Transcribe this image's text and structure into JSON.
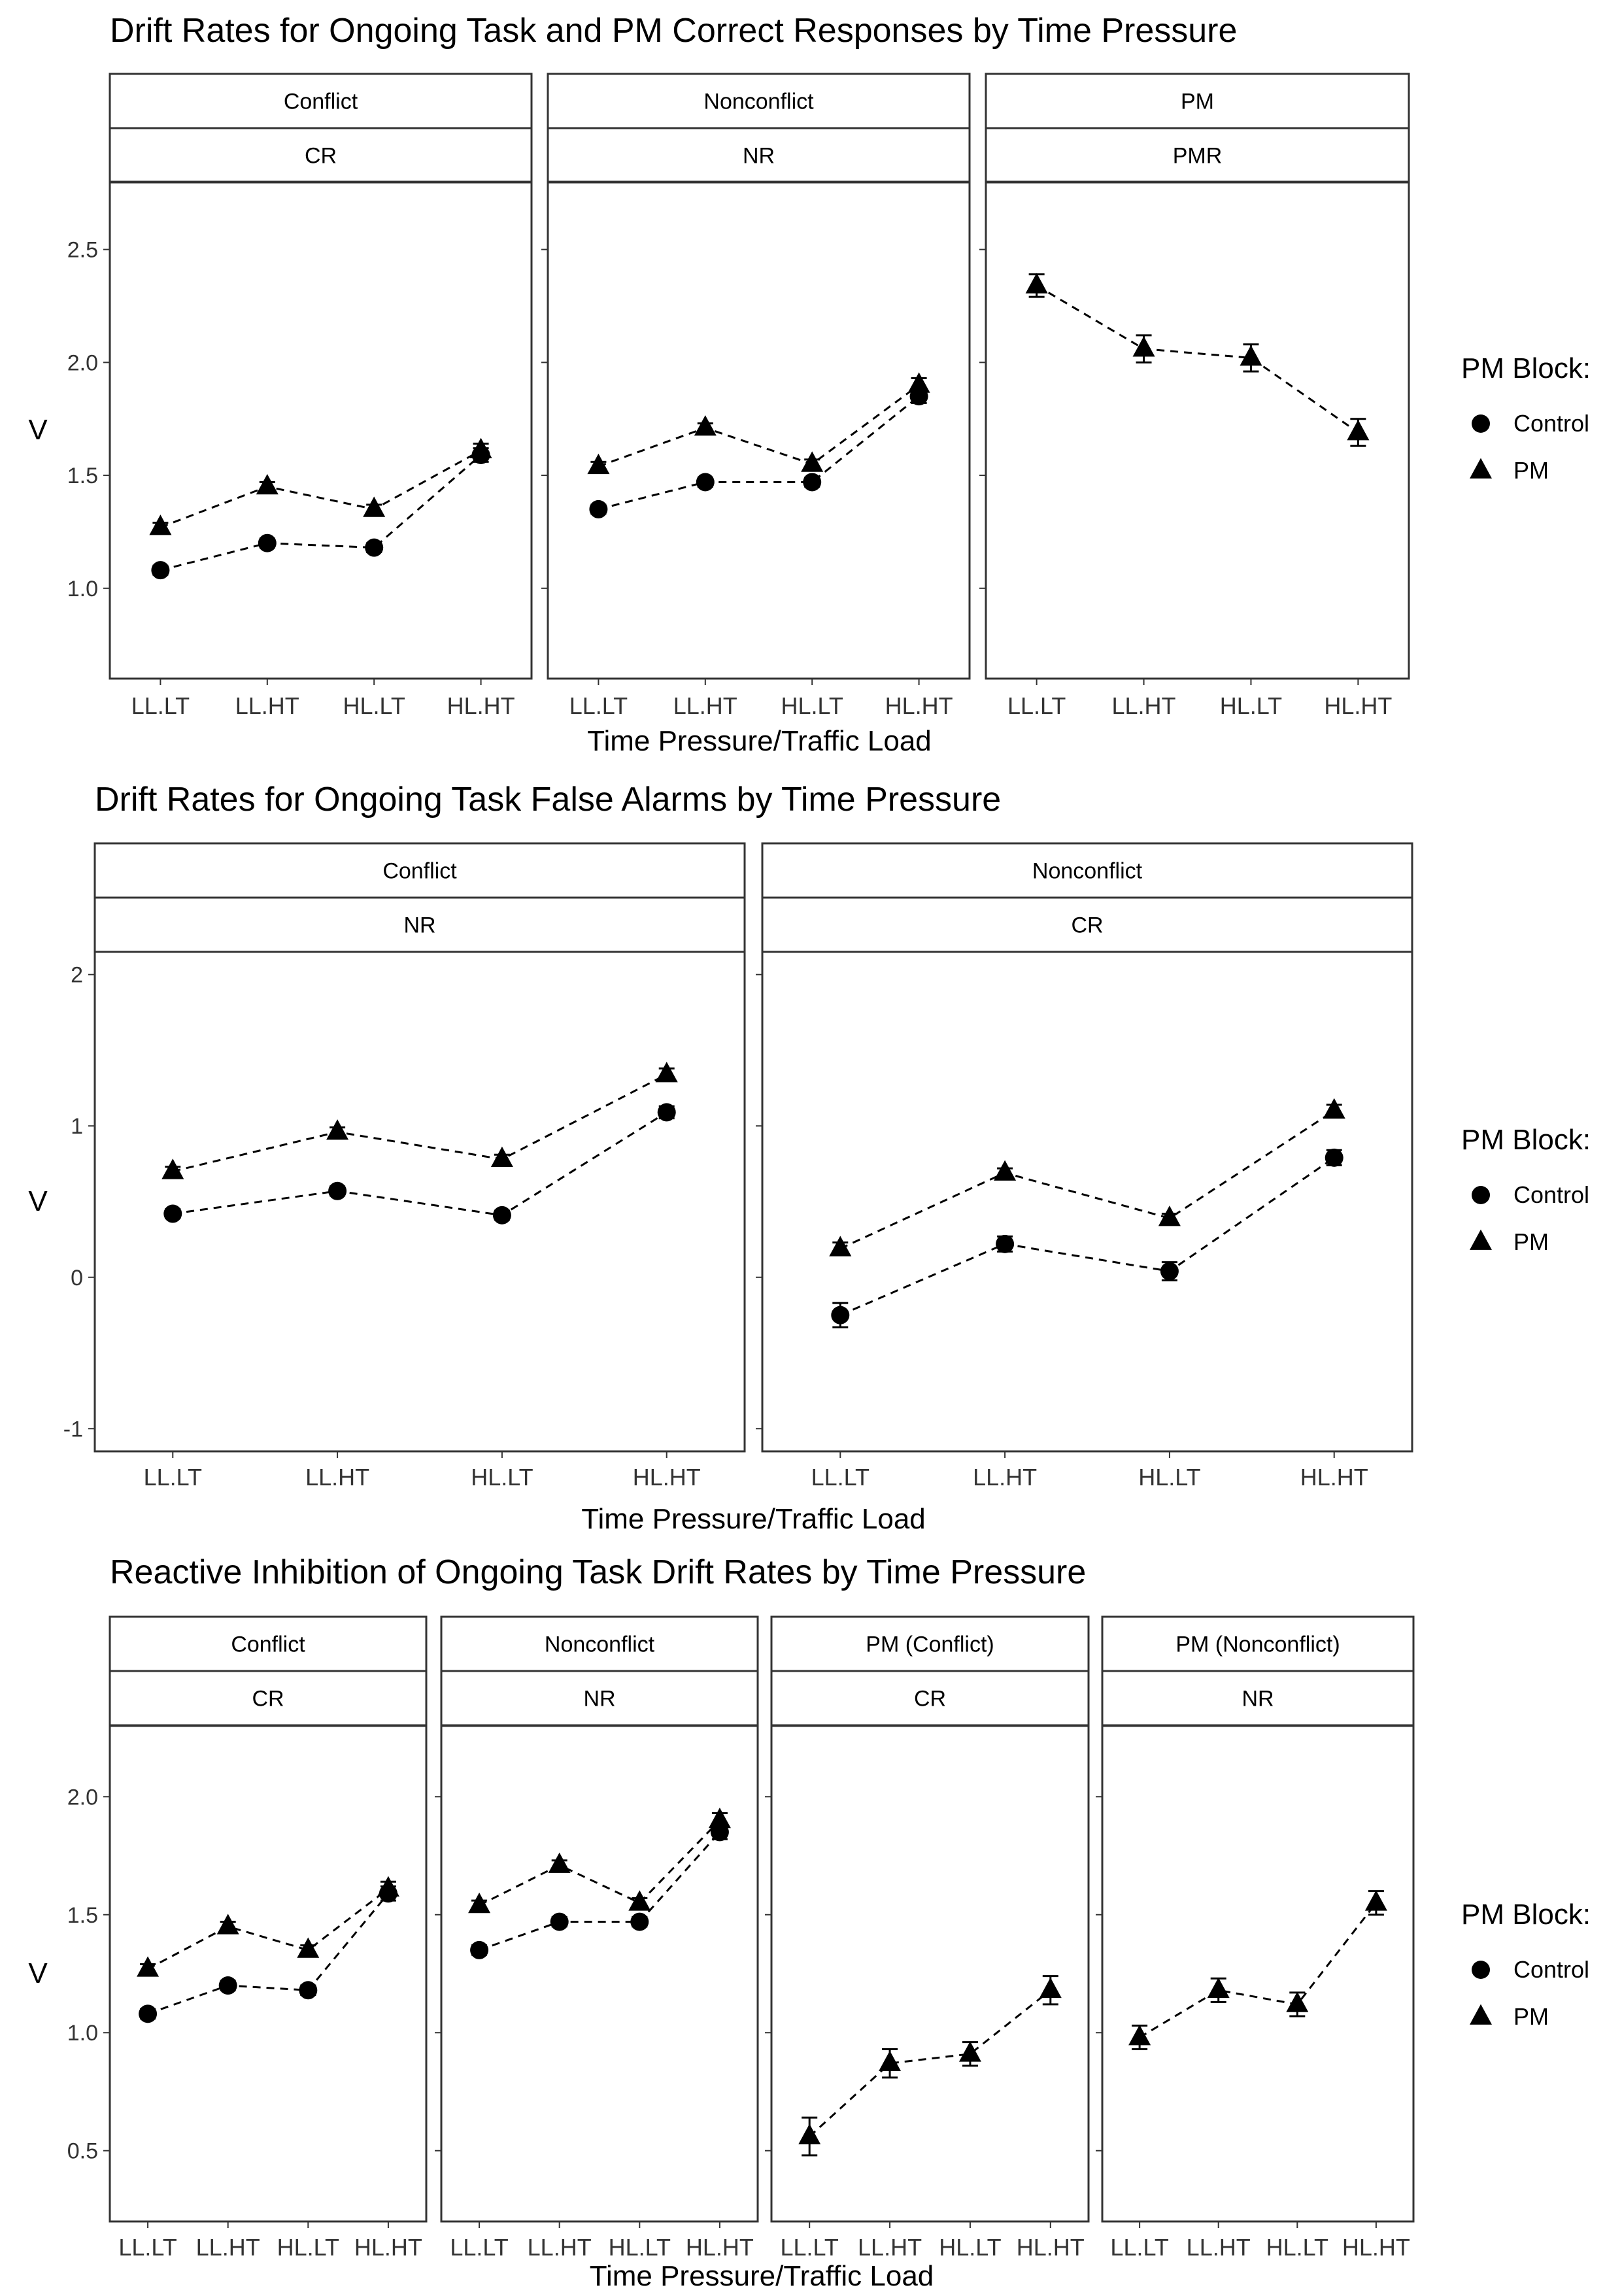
{
  "chart_data": [
    {
      "type": "line",
      "title": "Drift Rates for Ongoing Task and PM Correct Responses by Time Pressure",
      "xlabel": "Time Pressure/Traffic Load",
      "ylabel": "V",
      "ylim": [
        0.6,
        2.8
      ],
      "yticks": [
        1.0,
        1.5,
        2.0,
        2.5
      ],
      "ytick_labels": [
        "1.0",
        "1.5",
        "2.0",
        "2.5"
      ],
      "categories": [
        "LL.LT",
        "LL.HT",
        "HL.LT",
        "HL.HT"
      ],
      "legend": {
        "title": "PM Block:",
        "entries": [
          "Control",
          "PM"
        ],
        "position": "right"
      },
      "grid": false,
      "panels": [
        {
          "strip_top": "Conflict",
          "strip_bottom": "CR",
          "series": [
            {
              "name": "Control",
              "values": [
                1.08,
                1.2,
                1.18,
                1.59
              ],
              "errors": [
                0.02,
                0.02,
                0.02,
                0.03
              ]
            },
            {
              "name": "PM",
              "values": [
                1.27,
                1.45,
                1.35,
                1.61
              ],
              "errors": [
                0.02,
                0.02,
                0.02,
                0.03
              ]
            }
          ]
        },
        {
          "strip_top": "Nonconflict",
          "strip_bottom": "NR",
          "series": [
            {
              "name": "Control",
              "values": [
                1.35,
                1.47,
                1.47,
                1.85
              ],
              "errors": [
                0.02,
                0.02,
                0.02,
                0.03
              ]
            },
            {
              "name": "PM",
              "values": [
                1.54,
                1.71,
                1.55,
                1.9
              ],
              "errors": [
                0.02,
                0.02,
                0.02,
                0.03
              ]
            }
          ]
        },
        {
          "strip_top": "PM",
          "strip_bottom": "PMR",
          "series": [
            {
              "name": "PM",
              "values": [
                2.34,
                2.06,
                2.02,
                1.69
              ],
              "errors": [
                0.05,
                0.06,
                0.06,
                0.06
              ]
            }
          ]
        }
      ]
    },
    {
      "type": "line",
      "title": "Drift Rates for Ongoing Task False Alarms by Time Pressure",
      "xlabel": "Time Pressure/Traffic Load",
      "ylabel": "V",
      "ylim": [
        -1.15,
        2.15
      ],
      "yticks": [
        -1,
        0,
        1,
        2
      ],
      "ytick_labels": [
        "-1",
        "0",
        "1",
        "2"
      ],
      "categories": [
        "LL.LT",
        "LL.HT",
        "HL.LT",
        "HL.HT"
      ],
      "legend": {
        "title": "PM Block:",
        "entries": [
          "Control",
          "PM"
        ],
        "position": "right"
      },
      "grid": false,
      "panels": [
        {
          "strip_top": "Conflict",
          "strip_bottom": "NR",
          "series": [
            {
              "name": "Control",
              "values": [
                0.42,
                0.57,
                0.41,
                1.09
              ],
              "errors": [
                0.03,
                0.03,
                0.03,
                0.04
              ]
            },
            {
              "name": "PM",
              "values": [
                0.7,
                0.96,
                0.78,
                1.34
              ],
              "errors": [
                0.03,
                0.03,
                0.03,
                0.04
              ]
            }
          ]
        },
        {
          "strip_top": "Nonconflict",
          "strip_bottom": "CR",
          "series": [
            {
              "name": "Control",
              "values": [
                -0.25,
                0.22,
                0.04,
                0.79
              ],
              "errors": [
                0.08,
                0.05,
                0.06,
                0.05
              ]
            },
            {
              "name": "PM",
              "values": [
                0.19,
                0.69,
                0.39,
                1.1
              ],
              "errors": [
                0.04,
                0.03,
                0.03,
                0.04
              ]
            }
          ]
        }
      ]
    },
    {
      "type": "line",
      "title": "Reactive Inhibition of Ongoing Task Drift Rates by Time Pressure",
      "xlabel": "Time Pressure/Traffic Load",
      "ylabel": "V",
      "ylim": [
        0.2,
        2.3
      ],
      "yticks": [
        0.5,
        1.0,
        1.5,
        2.0
      ],
      "ytick_labels": [
        "0.5",
        "1.0",
        "1.5",
        "2.0"
      ],
      "categories": [
        "LL.LT",
        "LL.HT",
        "HL.LT",
        "HL.HT"
      ],
      "legend": {
        "title": "PM Block:",
        "entries": [
          "Control",
          "PM"
        ],
        "position": "right"
      },
      "grid": false,
      "panels": [
        {
          "strip_top": "Conflict",
          "strip_bottom": "CR",
          "series": [
            {
              "name": "Control",
              "values": [
                1.08,
                1.2,
                1.18,
                1.59
              ],
              "errors": [
                0.02,
                0.02,
                0.02,
                0.03
              ]
            },
            {
              "name": "PM",
              "values": [
                1.27,
                1.45,
                1.35,
                1.61
              ],
              "errors": [
                0.02,
                0.02,
                0.02,
                0.03
              ]
            }
          ]
        },
        {
          "strip_top": "Nonconflict",
          "strip_bottom": "NR",
          "series": [
            {
              "name": "Control",
              "values": [
                1.35,
                1.47,
                1.47,
                1.85
              ],
              "errors": [
                0.02,
                0.02,
                0.02,
                0.03
              ]
            },
            {
              "name": "PM",
              "values": [
                1.54,
                1.71,
                1.55,
                1.9
              ],
              "errors": [
                0.02,
                0.02,
                0.02,
                0.03
              ]
            }
          ]
        },
        {
          "strip_top": "PM (Conflict)",
          "strip_bottom": "CR",
          "series": [
            {
              "name": "PM",
              "values": [
                0.56,
                0.87,
                0.91,
                1.18
              ],
              "errors": [
                0.08,
                0.06,
                0.05,
                0.06
              ]
            }
          ]
        },
        {
          "strip_top": "PM (Nonconflict)",
          "strip_bottom": "NR",
          "series": [
            {
              "name": "PM",
              "values": [
                0.98,
                1.18,
                1.12,
                1.55
              ],
              "errors": [
                0.05,
                0.05,
                0.05,
                0.05
              ]
            }
          ]
        }
      ]
    }
  ]
}
